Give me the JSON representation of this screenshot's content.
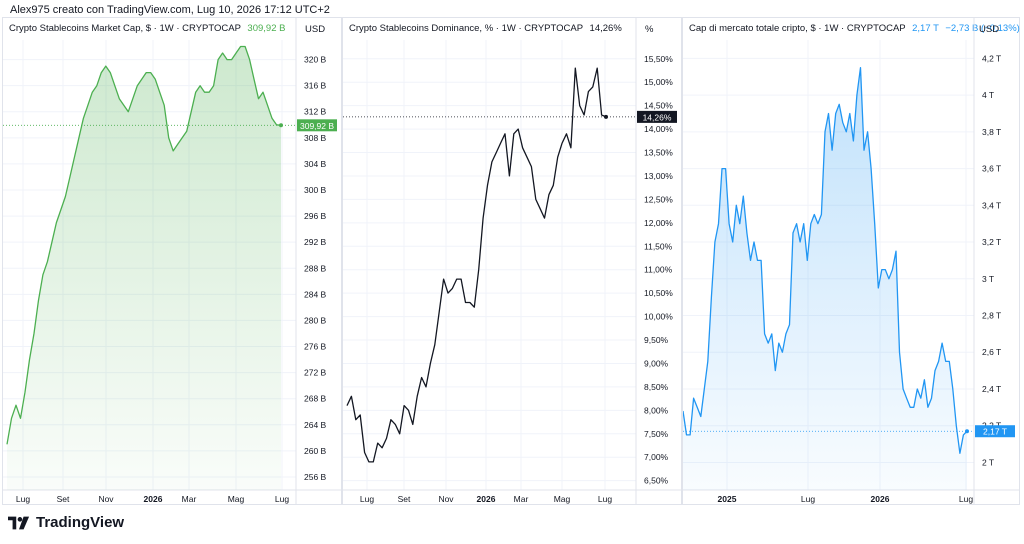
{
  "header": {
    "text": "Alex975 creato con TradingView.com, Lug 10, 2026 17:12 UTC+2"
  },
  "footer": {
    "brand": "TradingView"
  },
  "panels": [
    {
      "title": "Crypto Stablecoins Market Cap, $ · 1W · CRYPTOCAP",
      "value_label": "309,92 B",
      "unit": "USD",
      "color": "#4caf50"
    },
    {
      "title": "Crypto Stablecoins Dominance, % · 1W · CRYPTOCAP",
      "value_label": "14,26%",
      "unit": "%",
      "color": "#131722"
    },
    {
      "title": "Cap di mercato totale cripto, $ · 1W · CRYPTOCAP",
      "value_label": "2,17 T",
      "value_change": "−2,73 B (−0,13%)",
      "unit": "USD",
      "color": "#2196f3"
    }
  ],
  "chart_data": [
    {
      "type": "area",
      "title": "Crypto Stablecoins Market Cap, $ · 1W · CRYPTOCAP",
      "ylabel": "USD",
      "ylim": [
        254,
        323
      ],
      "yticks": [
        "320 B",
        "316 B",
        "312 B",
        "308 B",
        "304 B",
        "300 B",
        "296 B",
        "292 B",
        "288 B",
        "284 B",
        "280 B",
        "276 B",
        "272 B",
        "268 B",
        "264 B",
        "260 B",
        "256 B"
      ],
      "ytick_values": [
        320,
        316,
        312,
        308,
        304,
        300,
        296,
        292,
        288,
        284,
        280,
        276,
        272,
        268,
        264,
        260,
        256
      ],
      "xtick_labels": [
        "Lug",
        "Set",
        "Nov",
        "2026",
        "Mar",
        "Mag",
        "Lug"
      ],
      "last_value": 309.92,
      "values": [
        261,
        265,
        267,
        265,
        269,
        274,
        278,
        283,
        287,
        289,
        292,
        295,
        297,
        299,
        302,
        305,
        308,
        311,
        313,
        315,
        316,
        318,
        319,
        318,
        316,
        314,
        313,
        312,
        314,
        316,
        317,
        318,
        318,
        317,
        315,
        313,
        308,
        306,
        307,
        308,
        309,
        312,
        315,
        316,
        315,
        315,
        316,
        320,
        321,
        320,
        320,
        321,
        322,
        322,
        320,
        317,
        314,
        315,
        313,
        311,
        310,
        309.92
      ]
    },
    {
      "type": "line",
      "title": "Crypto Stablecoins Dominance, % · 1W · CRYPTOCAP",
      "ylabel": "%",
      "ylim": [
        6.3,
        15.9
      ],
      "yticks": [
        "15,50%",
        "15,00%",
        "14,50%",
        "14,00%",
        "13,50%",
        "13,00%",
        "12,50%",
        "12,00%",
        "11,50%",
        "11,00%",
        "10,50%",
        "10,00%",
        "9,50%",
        "9,00%",
        "8,50%",
        "8,00%",
        "7,50%",
        "7,00%",
        "6,50%"
      ],
      "ytick_values": [
        15.5,
        15.0,
        14.5,
        14.0,
        13.5,
        13.0,
        12.5,
        12.0,
        11.5,
        11.0,
        10.5,
        10.0,
        9.5,
        9.0,
        8.5,
        8.0,
        7.5,
        7.0,
        6.5
      ],
      "xtick_labels": [
        "Lug",
        "Set",
        "Nov",
        "2026",
        "Mar",
        "Mag",
        "Lug"
      ],
      "last_value": 14.26,
      "values": [
        8.1,
        8.3,
        7.8,
        7.9,
        7.1,
        6.9,
        6.9,
        7.3,
        7.2,
        7.4,
        7.8,
        7.7,
        7.5,
        8.1,
        8.0,
        7.7,
        8.3,
        8.7,
        8.5,
        9.0,
        9.4,
        10.1,
        10.8,
        10.5,
        10.6,
        10.8,
        10.8,
        10.3,
        10.3,
        10.2,
        11.0,
        12.1,
        12.8,
        13.3,
        13.5,
        13.7,
        13.9,
        13.0,
        13.9,
        14.0,
        13.6,
        13.4,
        13.2,
        12.5,
        12.3,
        12.1,
        12.6,
        12.8,
        13.4,
        13.7,
        13.9,
        13.6,
        15.3,
        14.5,
        14.3,
        14.8,
        14.9,
        15.3,
        14.3,
        14.26
      ]
    },
    {
      "type": "area",
      "title": "Cap di mercato totale cripto, $ · 1W · CRYPTOCAP",
      "ylabel": "USD",
      "ylim": [
        1.85,
        4.3
      ],
      "yticks": [
        "4,2 T",
        "4 T",
        "3,8 T",
        "3,6 T",
        "3,4 T",
        "3,2 T",
        "3 T",
        "2,8 T",
        "2,6 T",
        "2,4 T",
        "2,2 T",
        "2 T"
      ],
      "ytick_values": [
        4.2,
        4.0,
        3.8,
        3.6,
        3.4,
        3.2,
        3.0,
        2.8,
        2.6,
        2.4,
        2.2,
        2.0
      ],
      "xtick_labels": [
        "2025",
        "Lug",
        "2026",
        "Lug"
      ],
      "last_value": 2.17,
      "values": [
        2.28,
        2.15,
        2.15,
        2.35,
        2.3,
        2.25,
        2.4,
        2.55,
        2.9,
        3.2,
        3.3,
        3.6,
        3.6,
        3.3,
        3.2,
        3.4,
        3.3,
        3.45,
        3.25,
        3.1,
        3.2,
        3.1,
        3.1,
        2.7,
        2.65,
        2.7,
        2.5,
        2.65,
        2.6,
        2.7,
        2.75,
        3.25,
        3.3,
        3.2,
        3.3,
        3.1,
        3.3,
        3.35,
        3.3,
        3.35,
        3.8,
        3.9,
        3.7,
        3.9,
        3.95,
        3.85,
        3.8,
        3.9,
        3.75,
        4.0,
        4.15,
        3.7,
        3.8,
        3.6,
        3.3,
        2.95,
        3.05,
        3.05,
        3.0,
        3.05,
        3.15,
        2.6,
        2.4,
        2.35,
        2.3,
        2.3,
        2.4,
        2.35,
        2.45,
        2.3,
        2.35,
        2.5,
        2.55,
        2.65,
        2.55,
        2.55,
        2.4,
        2.2,
        2.05,
        2.15,
        2.17
      ]
    }
  ]
}
